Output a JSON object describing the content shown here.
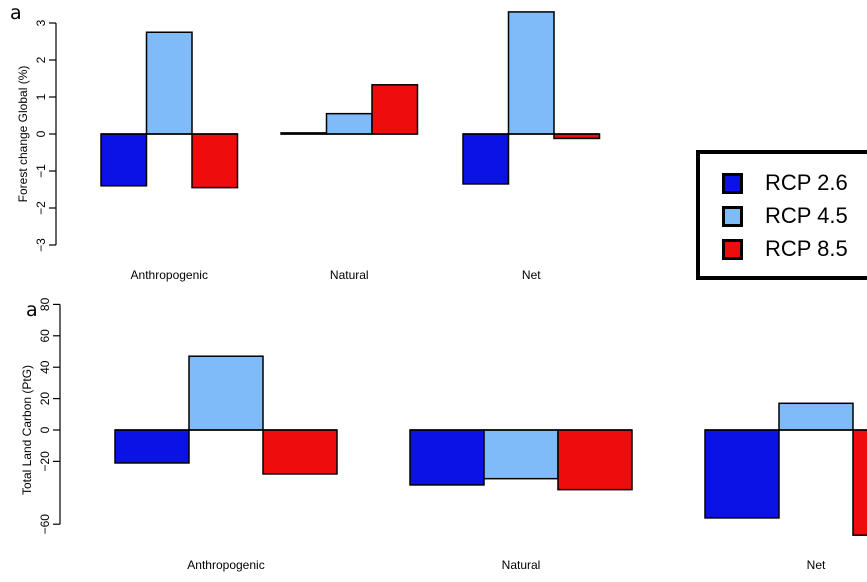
{
  "panel_labels": {
    "top": "a",
    "bottom": "a"
  },
  "legend": [
    {
      "label": "RCP 2.6",
      "color": "#0a12e6"
    },
    {
      "label": "RCP 4.5",
      "color": "#7fbbf8"
    },
    {
      "label": "RCP 8.5",
      "color": "#ee0c0c"
    }
  ],
  "chart_data": [
    {
      "type": "bar",
      "ylabel": "Forest change Global (%)",
      "xlabel": "",
      "categories": [
        "Anthropogenic",
        "Natural",
        "Net"
      ],
      "ylim": [
        -3,
        3
      ],
      "yticks": [
        -3,
        -2,
        -1,
        0,
        1,
        2,
        3
      ],
      "ytick_labels": [
        "−3",
        "−2",
        "−1",
        "0",
        "1",
        "2",
        "3"
      ],
      "grid": false,
      "series": [
        {
          "name": "RCP 2.6",
          "values": [
            -1.4,
            0.03,
            -1.35
          ]
        },
        {
          "name": "RCP 4.5",
          "values": [
            2.75,
            0.55,
            3.3
          ]
        },
        {
          "name": "RCP 8.5",
          "values": [
            -1.45,
            1.33,
            -0.12
          ]
        }
      ]
    },
    {
      "type": "bar",
      "ylabel": "Total Land Carbon (PtG)",
      "xlabel": "",
      "categories": [
        "Anthropogenic",
        "Natural",
        "Net"
      ],
      "ylim": [
        -60,
        80
      ],
      "yticks": [
        -60,
        -20,
        0,
        20,
        40,
        60,
        80
      ],
      "ytick_labels": [
        "−60",
        "−20",
        "0",
        "20",
        "40",
        "60",
        "80"
      ],
      "grid": false,
      "series": [
        {
          "name": "RCP 2.6",
          "values": [
            -21,
            -35,
            -56
          ]
        },
        {
          "name": "RCP 4.5",
          "values": [
            47,
            -31,
            17
          ]
        },
        {
          "name": "RCP 8.5",
          "values": [
            -28,
            -38,
            -67
          ]
        }
      ]
    }
  ]
}
